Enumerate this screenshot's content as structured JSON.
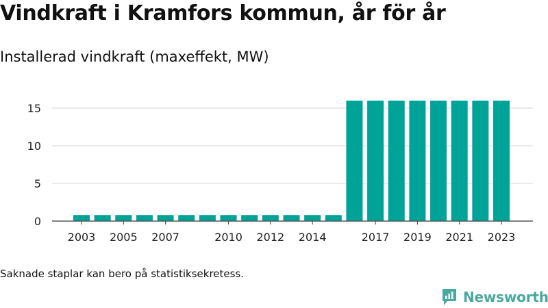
{
  "title": "Vindkraft i Kramfors kommun, år för år",
  "subtitle": "Installerad vindkraft (maxeffekt, MW)",
  "footnote": "Saknade staplar kan bero på statistiksekretess.",
  "brand": {
    "name": "Newsworthy",
    "icon": "newsworthy-logo-icon"
  },
  "colors": {
    "bar": "#00a398",
    "grid": "#dddddd",
    "axis": "#555555",
    "text": "#222222"
  },
  "chart_data": {
    "type": "bar",
    "title": "Vindkraft i Kramfors kommun, år för år",
    "subtitle": "Installerad vindkraft (maxeffekt, MW)",
    "xlabel": "",
    "ylabel": "",
    "categories": [
      "2003",
      "2004",
      "2005",
      "2006",
      "2007",
      "2008",
      "2009",
      "2010",
      "2011",
      "2012",
      "2013",
      "2014",
      "2015",
      "2016",
      "2017",
      "2018",
      "2019",
      "2020",
      "2021",
      "2022",
      "2023"
    ],
    "values": [
      0.8,
      0.8,
      0.8,
      0.8,
      0.8,
      0.8,
      0.8,
      0.8,
      0.8,
      0.8,
      0.8,
      0.8,
      0.8,
      16,
      16,
      16,
      16,
      16,
      16,
      16,
      16
    ],
    "x_tick_labels": [
      "2003",
      "2005",
      "2007",
      "2010",
      "2012",
      "2014",
      "2017",
      "2019",
      "2021",
      "2023"
    ],
    "y_ticks": [
      0,
      5,
      10,
      15
    ],
    "ylim": [
      0,
      17
    ],
    "grid": true,
    "legend": "none"
  }
}
